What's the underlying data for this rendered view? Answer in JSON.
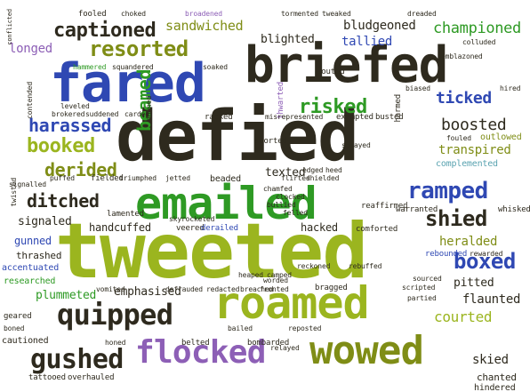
{
  "palette": {
    "dark": "#2e2a1e",
    "lime": "#9bb51f",
    "olive": "#7f8d16",
    "green": "#2e9a24",
    "blue": "#2f48b3",
    "purple": "#8d5fb6",
    "teal": "#5aa3b0",
    "lightgreen": "#a8d05a"
  },
  "words": [
    {
      "text": "defied",
      "color": "dark"
    },
    {
      "text": "tweeted",
      "color": "lime"
    },
    {
      "text": "briefed",
      "color": "dark"
    },
    {
      "text": "fared",
      "color": "blue"
    },
    {
      "text": "emailed",
      "color": "green"
    },
    {
      "text": "roamed",
      "color": "lime"
    },
    {
      "text": "wowed",
      "color": "olive"
    },
    {
      "text": "flocked",
      "color": "purple"
    },
    {
      "text": "quipped",
      "color": "dark"
    },
    {
      "text": "gushed",
      "color": "dark"
    },
    {
      "text": "resorted",
      "color": "olive"
    },
    {
      "text": "captioned",
      "color": "dark"
    },
    {
      "text": "risked",
      "color": "green"
    },
    {
      "text": "ramped",
      "color": "blue"
    },
    {
      "text": "boxed",
      "color": "blue"
    },
    {
      "text": "shied",
      "color": "dark"
    },
    {
      "text": "booked",
      "color": "lime"
    },
    {
      "text": "harassed",
      "color": "blue"
    },
    {
      "text": "beamed",
      "color": "green"
    },
    {
      "text": "ditched",
      "color": "dark"
    },
    {
      "text": "derided",
      "color": "olive"
    },
    {
      "text": "ticked",
      "color": "blue"
    },
    {
      "text": "boosted",
      "color": "dark"
    },
    {
      "text": "transpired",
      "color": "olive"
    },
    {
      "text": "courted",
      "color": "lime"
    },
    {
      "text": "championed",
      "color": "green"
    },
    {
      "text": "sandwiched",
      "color": "olive"
    },
    {
      "text": "bludgeoned",
      "color": "dark"
    },
    {
      "text": "tallied",
      "color": "blue"
    },
    {
      "text": "blighted",
      "color": "dark"
    },
    {
      "text": "longed",
      "color": "purple"
    },
    {
      "text": "heralded",
      "color": "olive"
    },
    {
      "text": "pitted",
      "color": "dark"
    },
    {
      "text": "flaunted",
      "color": "dark"
    },
    {
      "text": "skied",
      "color": "dark"
    },
    {
      "text": "texted",
      "color": "dark"
    },
    {
      "text": "plummeted",
      "color": "green"
    },
    {
      "text": "emphasised",
      "color": "dark"
    },
    {
      "text": "signaled",
      "color": "dark"
    },
    {
      "text": "gunned",
      "color": "blue"
    },
    {
      "text": "handcuffed",
      "color": "dark"
    },
    {
      "text": "chanted",
      "color": "dark"
    },
    {
      "text": "hindered",
      "color": "dark"
    },
    {
      "text": "complemented",
      "color": "teal"
    },
    {
      "text": "outlowed",
      "color": "olive"
    },
    {
      "text": "thrashed",
      "color": "dark"
    },
    {
      "text": "accentuated",
      "color": "blue"
    },
    {
      "text": "researched",
      "color": "green"
    },
    {
      "text": "cautioned",
      "color": "dark"
    },
    {
      "text": "hacked",
      "color": "dark"
    },
    {
      "text": "warranted",
      "color": "dark"
    },
    {
      "text": "rebounded",
      "color": "blue"
    },
    {
      "text": "whisked",
      "color": "dark"
    },
    {
      "text": "reaffirmed",
      "color": "dark"
    },
    {
      "text": "comforted",
      "color": "dark"
    },
    {
      "text": "lamented",
      "color": "dark"
    },
    {
      "text": "veered",
      "color": "dark"
    },
    {
      "text": "derailed",
      "color": "blue"
    },
    {
      "text": "bombarded",
      "color": "dark"
    },
    {
      "text": "belted",
      "color": "dark"
    },
    {
      "text": "tattooed",
      "color": "dark"
    },
    {
      "text": "overhauled",
      "color": "dark"
    },
    {
      "text": "fielded",
      "color": "dark"
    },
    {
      "text": "racked",
      "color": "dark"
    },
    {
      "text": "sported",
      "color": "dark"
    },
    {
      "text": "thwarted",
      "color": "purple"
    },
    {
      "text": "touted",
      "color": "dark"
    },
    {
      "text": "exempted",
      "color": "dark"
    },
    {
      "text": "busted",
      "color": "dark"
    },
    {
      "text": "hammered",
      "color": "green"
    },
    {
      "text": "fooled",
      "color": "dark"
    },
    {
      "text": "broadened",
      "color": "purple"
    },
    {
      "text": "soaked",
      "color": "dark"
    },
    {
      "text": "squandered",
      "color": "dark"
    },
    {
      "text": "carded",
      "color": "dark"
    },
    {
      "text": "suddened",
      "color": "dark"
    },
    {
      "text": "brokered",
      "color": "dark"
    },
    {
      "text": "leveled",
      "color": "dark"
    },
    {
      "text": "puffed",
      "color": "dark"
    },
    {
      "text": "triumphed",
      "color": "dark"
    },
    {
      "text": "jetted",
      "color": "dark"
    },
    {
      "text": "beaded",
      "color": "dark"
    },
    {
      "text": "flirted",
      "color": "dark"
    },
    {
      "text": "shielded",
      "color": "dark"
    },
    {
      "text": "chamfed",
      "color": "dark"
    },
    {
      "text": "clocked",
      "color": "dark"
    },
    {
      "text": "bullied",
      "color": "dark"
    },
    {
      "text": "felled",
      "color": "dark"
    },
    {
      "text": "edged",
      "color": "dark"
    },
    {
      "text": "heed",
      "color": "dark"
    },
    {
      "text": "reckoned",
      "color": "dark"
    },
    {
      "text": "rebuffed",
      "color": "dark"
    },
    {
      "text": "bragged",
      "color": "dark"
    },
    {
      "text": "scripted",
      "color": "dark"
    },
    {
      "text": "partied",
      "color": "dark"
    },
    {
      "text": "redacted",
      "color": "dark"
    },
    {
      "text": "fronted",
      "color": "dark"
    },
    {
      "text": "worded",
      "color": "dark"
    },
    {
      "text": "vomited",
      "color": "dark"
    },
    {
      "text": "geared",
      "color": "dark"
    },
    {
      "text": "boned",
      "color": "dark"
    },
    {
      "text": "bailed",
      "color": "dark"
    },
    {
      "text": "honed",
      "color": "dark"
    },
    {
      "text": "emblazoned",
      "color": "dark"
    },
    {
      "text": "colluded",
      "color": "dark"
    },
    {
      "text": "tweaked",
      "color": "dark"
    },
    {
      "text": "dreaded",
      "color": "dark"
    },
    {
      "text": "tormented",
      "color": "dark"
    },
    {
      "text": "choked",
      "color": "dark"
    },
    {
      "text": "biased",
      "color": "dark"
    },
    {
      "text": "misrepresented",
      "color": "dark"
    },
    {
      "text": "fouled",
      "color": "dark"
    },
    {
      "text": "camped",
      "color": "dark"
    },
    {
      "text": "heaped",
      "color": "dark"
    },
    {
      "text": "breached",
      "color": "dark"
    },
    {
      "text": "defrauded",
      "color": "dark"
    },
    {
      "text": "skyrocketed",
      "color": "dark"
    },
    {
      "text": "sprayed",
      "color": "dark"
    },
    {
      "text": "reposted",
      "color": "dark"
    },
    {
      "text": "relayed",
      "color": "dark"
    },
    {
      "text": "sourced",
      "color": "dark"
    },
    {
      "text": "rewarded",
      "color": "dark"
    },
    {
      "text": "contended",
      "color": "dark"
    },
    {
      "text": "twisted",
      "color": "dark"
    },
    {
      "text": "signalled",
      "color": "dark"
    },
    {
      "text": "downed",
      "color": "dark"
    },
    {
      "text": "harmed",
      "color": "dark"
    },
    {
      "text": "hired",
      "color": "dark"
    },
    {
      "text": "conflicted",
      "color": "dark"
    }
  ]
}
